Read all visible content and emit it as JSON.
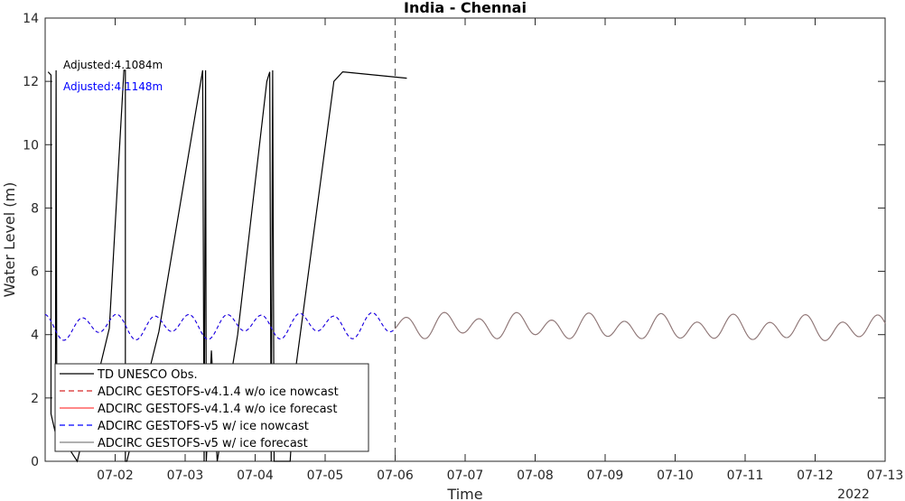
{
  "chart_data": {
    "type": "line",
    "title": "India - Chennai",
    "xlabel": "Time",
    "ylabel": "Water Level (m)",
    "year_label": "2022",
    "xlim": [
      "2022-07-01T00:00",
      "2022-07-13T00:00"
    ],
    "ylim": [
      0,
      14
    ],
    "yticks": [
      0,
      2,
      4,
      6,
      8,
      10,
      12,
      14
    ],
    "xticks": [
      "07-02",
      "07-03",
      "07-04",
      "07-05",
      "07-06",
      "07-07",
      "07-08",
      "07-09",
      "07-10",
      "07-11",
      "07-12",
      "07-13"
    ],
    "forecast_start": "2022-07-06T00:00",
    "grid": false,
    "legend_position": "bottom-left",
    "annotations": [
      {
        "text": "Adjusted:4.1084m",
        "color": "#000000"
      },
      {
        "text": "Adjusted:4.1148m",
        "color": "#0000ff"
      }
    ],
    "series": [
      {
        "name": "TD UNESCO Obs.",
        "color": "#000000",
        "style": "solid",
        "points": [
          [
            "2022-07-01T01:00",
            12.3
          ],
          [
            "2022-07-01T02:00",
            12.2
          ],
          [
            "2022-07-01T02:00",
            1.5
          ],
          [
            "2022-07-01T03:30",
            0.9
          ],
          [
            "2022-07-01T03:45",
            12.35
          ],
          [
            "2022-07-01T04:00",
            1.0
          ],
          [
            "2022-07-01T11:00",
            0.0
          ],
          [
            "2022-07-01T22:00",
            4.2
          ],
          [
            "2022-07-02T03:00",
            12.35
          ],
          [
            "2022-07-02T03:30",
            12.35
          ],
          [
            "2022-07-02T03:30",
            0.0
          ],
          [
            "2022-07-02T04:00",
            0.0
          ],
          [
            "2022-07-02T15:00",
            4.1
          ],
          [
            "2022-07-03T06:00",
            12.35
          ],
          [
            "2022-07-03T06:30",
            0.0
          ],
          [
            "2022-07-03T07:00",
            12.35
          ],
          [
            "2022-07-03T07:15",
            0.0
          ],
          [
            "2022-07-03T09:00",
            3.5
          ],
          [
            "2022-07-03T11:00",
            0.0
          ],
          [
            "2022-07-03T18:00",
            4.0
          ],
          [
            "2022-07-04T04:00",
            12.0
          ],
          [
            "2022-07-04T05:00",
            12.3
          ],
          [
            "2022-07-04T05:30",
            0.0
          ],
          [
            "2022-07-04T06:00",
            12.35
          ],
          [
            "2022-07-04T06:30",
            0.0
          ],
          [
            "2022-07-04T12:00",
            0.0
          ],
          [
            "2022-07-04T14:00",
            3.0
          ],
          [
            "2022-07-05T03:00",
            12.0
          ],
          [
            "2022-07-05T06:00",
            12.3
          ],
          [
            "2022-07-06T04:00",
            12.1
          ]
        ]
      },
      {
        "name": "ADCIRC GESTOFS-v4.1.4 w/o ice nowcast",
        "color": "#d62728",
        "style": "dashed",
        "phase": "nowcast"
      },
      {
        "name": "ADCIRC GESTOFS-v4.1.4 w/o ice forecast",
        "color": "#ff4040",
        "style": "solid",
        "phase": "forecast"
      },
      {
        "name": "ADCIRC GESTOFS-v5 w/ ice nowcast",
        "color": "#0000ff",
        "style": "dashed",
        "phase": "nowcast"
      },
      {
        "name": "ADCIRC GESTOFS-v5 w/ ice forecast",
        "color": "#808080",
        "style": "solid",
        "phase": "forecast"
      }
    ],
    "model_tide": {
      "mean_level": 4.25,
      "semidiurnal_amplitude": 0.32,
      "semidiurnal_period_hours": 12.42
    }
  }
}
